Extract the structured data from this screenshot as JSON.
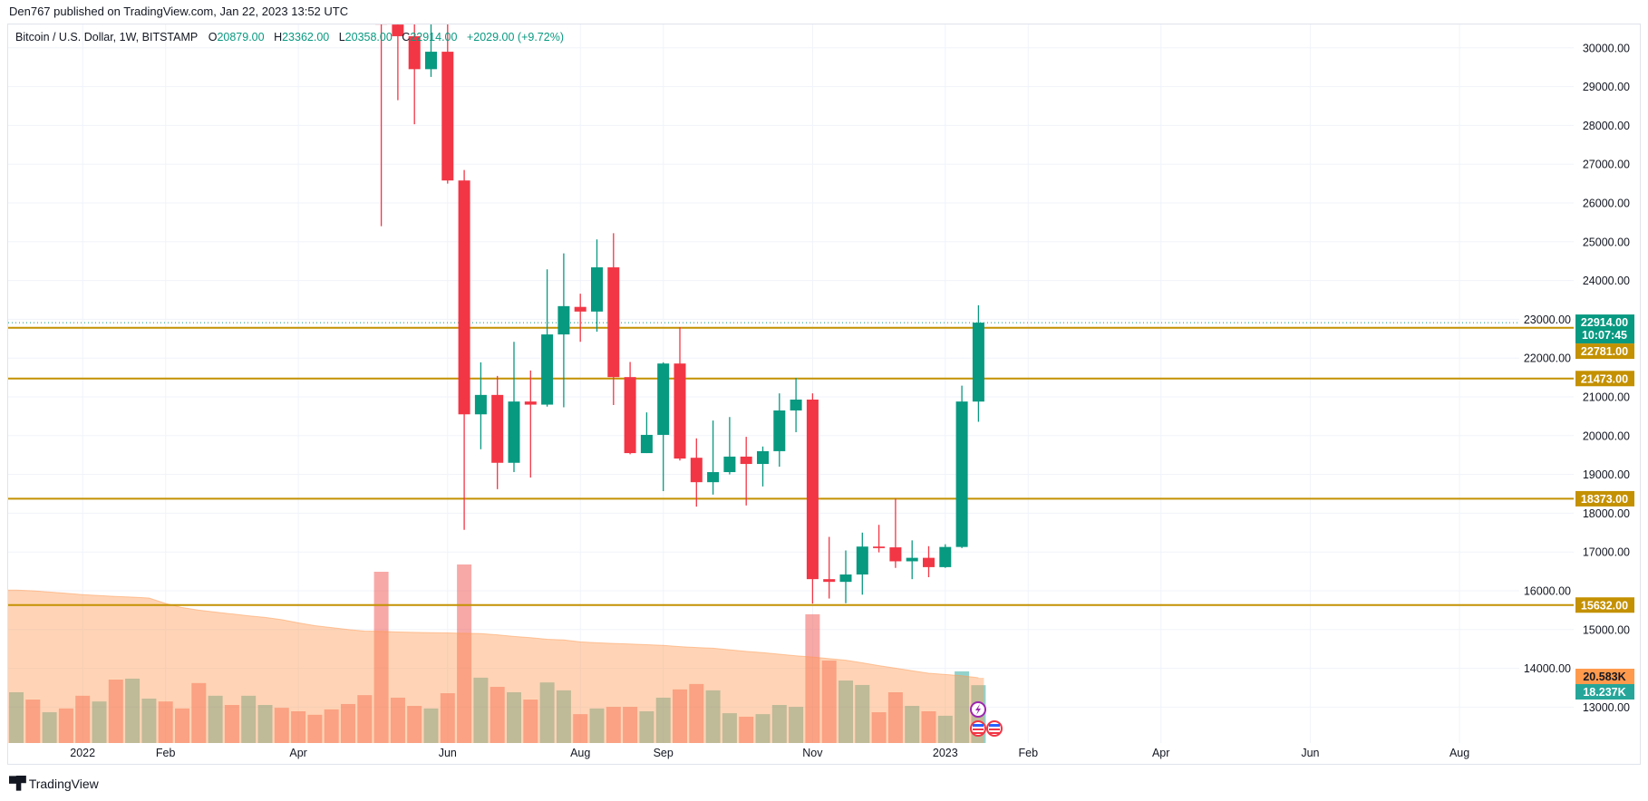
{
  "publish_line": "Den767 published on TradingView.com, Jan 22, 2023 13:52 UTC",
  "legend": {
    "symbol": "Bitcoin / U.S. Dollar, 1W, BITSTAMP",
    "open_label": "O",
    "open": "20879.00",
    "high_label": "H",
    "high": "23362.00",
    "low_label": "L",
    "low": "20358.00",
    "close_label": "C",
    "close": "22914.00",
    "change": "+2029.00 (+9.72%)"
  },
  "brand": "TradingView",
  "colors": {
    "up": "#089981",
    "down": "#f23645",
    "level": "#c49102",
    "volume_ma": "#ff9a4d",
    "volume_up_label": "#26a69a"
  },
  "chart_data": {
    "type": "candlestick",
    "interval": "1W",
    "ylim": [
      12000,
      30500
    ],
    "y_ticks": [
      "30000.00",
      "29000.00",
      "28000.00",
      "27000.00",
      "26000.00",
      "25000.00",
      "24000.00",
      "23000.00",
      "22000.00",
      "21000.00",
      "20000.00",
      "19000.00",
      "18000.00",
      "17000.00",
      "16000.00",
      "15000.00",
      "14000.00",
      "13000.00"
    ],
    "x_range_start": "2021-12-06",
    "x_ticks": [
      {
        "label": "2022",
        "date": "2022-01-03"
      },
      {
        "label": "Feb",
        "date": "2022-02-07"
      },
      {
        "label": "Apr",
        "date": "2022-04-04"
      },
      {
        "label": "Jun",
        "date": "2022-06-06"
      },
      {
        "label": "Aug",
        "date": "2022-08-01"
      },
      {
        "label": "Sep",
        "date": "2022-09-05"
      },
      {
        "label": "Nov",
        "date": "2022-11-07"
      },
      {
        "label": "2023",
        "date": "2023-01-02"
      },
      {
        "label": "Feb",
        "date": "2023-02-06"
      },
      {
        "label": "Apr",
        "date": "2023-04-03"
      },
      {
        "label": "Jun",
        "date": "2023-06-05"
      },
      {
        "label": "Aug",
        "date": "2023-08-07"
      }
    ],
    "grid": true,
    "candles_columns": [
      "week",
      "open",
      "high",
      "low",
      "close"
    ],
    "candles": [
      [
        "2022-05-09",
        31300,
        34200,
        25400,
        30600
      ],
      [
        "2022-05-16",
        30600,
        31300,
        28650,
        30300
      ],
      [
        "2022-05-23",
        30300,
        31300,
        28030,
        29450
      ],
      [
        "2022-05-30",
        29450,
        31800,
        29250,
        29900
      ],
      [
        "2022-06-06",
        29900,
        31700,
        26500,
        26580
      ],
      [
        "2022-06-13",
        26580,
        26850,
        17570,
        20550
      ],
      [
        "2022-06-20",
        20550,
        21890,
        19650,
        21050
      ],
      [
        "2022-06-27",
        21050,
        21540,
        18620,
        19300
      ],
      [
        "2022-07-04",
        19300,
        22420,
        19060,
        20880
      ],
      [
        "2022-07-11",
        20880,
        21680,
        18920,
        20800
      ],
      [
        "2022-07-18",
        20800,
        24290,
        20750,
        22610
      ],
      [
        "2022-07-25",
        22610,
        24700,
        20730,
        23340
      ],
      [
        "2022-08-01",
        23320,
        23660,
        22420,
        23200
      ],
      [
        "2022-08-08",
        23200,
        25060,
        22680,
        24340
      ],
      [
        "2022-08-15",
        24340,
        25220,
        20790,
        21510
      ],
      [
        "2022-08-22",
        21510,
        21900,
        19520,
        19550
      ],
      [
        "2022-08-29",
        19550,
        20600,
        19550,
        20020
      ],
      [
        "2022-09-05",
        20020,
        21890,
        18570,
        21860
      ],
      [
        "2022-09-12",
        21860,
        22800,
        19360,
        19410
      ],
      [
        "2022-09-19",
        19430,
        19930,
        18170,
        18800
      ],
      [
        "2022-09-26",
        18800,
        20390,
        18480,
        19060
      ],
      [
        "2022-10-03",
        19060,
        20480,
        19000,
        19460
      ],
      [
        "2022-10-10",
        19460,
        19970,
        18200,
        19270
      ],
      [
        "2022-10-17",
        19270,
        19720,
        18690,
        19600
      ],
      [
        "2022-10-24",
        19600,
        21090,
        19200,
        20650
      ],
      [
        "2022-10-31",
        20650,
        21490,
        20090,
        20930
      ],
      [
        "2022-11-07",
        20930,
        21090,
        15670,
        16300
      ],
      [
        "2022-11-14",
        16300,
        17390,
        15800,
        16230
      ],
      [
        "2022-11-21",
        16230,
        17040,
        15680,
        16420
      ],
      [
        "2022-11-28",
        16420,
        17500,
        15900,
        17140
      ],
      [
        "2022-12-05",
        17140,
        17700,
        16990,
        17100
      ],
      [
        "2022-12-12",
        17120,
        18380,
        16590,
        16760
      ],
      [
        "2022-12-19",
        16760,
        17300,
        16300,
        16850
      ],
      [
        "2022-12-26",
        16850,
        17150,
        16350,
        16610
      ],
      [
        "2023-01-02",
        16610,
        17200,
        16590,
        17130
      ],
      [
        "2023-01-09",
        17130,
        21290,
        17100,
        20880
      ],
      [
        "2023-01-16",
        20879,
        23362,
        20358,
        22914
      ]
    ],
    "volume_unit": "K",
    "volume": [
      [
        16.0,
        "up"
      ],
      [
        13.7,
        "down"
      ],
      [
        9.7,
        "up"
      ],
      [
        10.9,
        "down"
      ],
      [
        14.9,
        "down"
      ],
      [
        13.1,
        "up"
      ],
      [
        20.0,
        "down"
      ],
      [
        20.3,
        "up"
      ],
      [
        14.0,
        "up"
      ],
      [
        13.1,
        "down"
      ],
      [
        10.9,
        "down"
      ],
      [
        18.9,
        "down"
      ],
      [
        14.9,
        "up"
      ],
      [
        12.0,
        "down"
      ],
      [
        14.9,
        "up"
      ],
      [
        12.0,
        "up"
      ],
      [
        11.1,
        "down"
      ],
      [
        10.0,
        "down"
      ],
      [
        8.9,
        "down"
      ],
      [
        10.6,
        "down"
      ],
      [
        12.3,
        "down"
      ],
      [
        15.1,
        "down"
      ],
      [
        54.0,
        "down"
      ],
      [
        14.3,
        "down"
      ],
      [
        11.7,
        "down"
      ],
      [
        10.9,
        "up"
      ],
      [
        15.7,
        "down"
      ],
      [
        56.3,
        "down"
      ],
      [
        20.6,
        "up"
      ],
      [
        17.7,
        "down"
      ],
      [
        16.0,
        "up"
      ],
      [
        13.7,
        "down"
      ],
      [
        19.1,
        "up"
      ],
      [
        16.6,
        "up"
      ],
      [
        9.1,
        "down"
      ],
      [
        10.9,
        "up"
      ],
      [
        11.4,
        "down"
      ],
      [
        11.4,
        "down"
      ],
      [
        10.0,
        "up"
      ],
      [
        14.3,
        "up"
      ],
      [
        16.9,
        "down"
      ],
      [
        18.6,
        "down"
      ],
      [
        16.6,
        "up"
      ],
      [
        9.4,
        "up"
      ],
      [
        8.3,
        "down"
      ],
      [
        9.1,
        "up"
      ],
      [
        12.0,
        "up"
      ],
      [
        11.4,
        "up"
      ],
      [
        40.6,
        "down"
      ],
      [
        26.0,
        "down"
      ],
      [
        19.7,
        "up"
      ],
      [
        18.3,
        "up"
      ],
      [
        9.7,
        "down"
      ],
      [
        16.0,
        "down"
      ],
      [
        11.7,
        "up"
      ],
      [
        10.0,
        "down"
      ],
      [
        8.6,
        "up"
      ],
      [
        22.6,
        "up"
      ],
      [
        18.237,
        "up"
      ]
    ],
    "volume_ma": [
      48.2,
      48.0,
      47.6,
      47.2,
      46.8,
      46.5,
      46.2,
      46.0,
      45.7,
      44.0,
      42.7,
      41.9,
      41.3,
      40.7,
      40.1,
      39.6,
      38.9,
      37.9,
      37.0,
      36.4,
      35.8,
      35.3,
      35.2,
      35.0,
      34.9,
      34.8,
      34.7,
      34.6,
      34.5,
      34.1,
      33.6,
      33.2,
      32.7,
      32.5,
      31.9,
      31.6,
      31.4,
      31.2,
      31.0,
      30.8,
      30.4,
      30.1,
      29.9,
      29.4,
      28.9,
      28.5,
      28.0,
      27.5,
      27.1,
      26.6,
      26.1,
      25.3,
      24.4,
      23.6,
      22.8,
      22.0,
      21.6,
      21.2,
      20.583
    ],
    "horizontal_levels": [
      22781,
      21473,
      18373,
      15632
    ],
    "last_price": 22914,
    "price_labels": {
      "last": "22914.00",
      "countdown": "10:07:45",
      "levels": [
        "22781.00",
        "21473.00",
        "18373.00",
        "15632.00"
      ],
      "volume_ma": "20.583K",
      "volume": "18.237K"
    }
  }
}
